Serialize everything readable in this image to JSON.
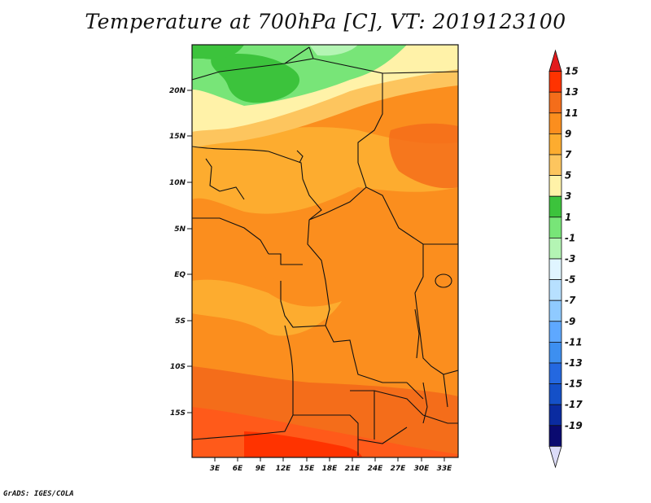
{
  "title": "Temperature at 700hPa [C], VT: 2019123100",
  "credit": "GrADS: IGES/COLA",
  "map": {
    "lat_labels": [
      "20N",
      "15N",
      "10N",
      "5N",
      "EQ",
      "5S",
      "10S",
      "15S"
    ],
    "lon_labels": [
      "3E",
      "6E",
      "9E",
      "12E",
      "15E",
      "18E",
      "21E",
      "24E",
      "27E",
      "30E",
      "33E"
    ]
  },
  "colorbar": {
    "labels": [
      "15",
      "13",
      "11",
      "9",
      "7",
      "5",
      "3",
      "1",
      "-1",
      "-3",
      "-5",
      "-7",
      "-9",
      "-11",
      "-13",
      "-15",
      "-17",
      "-19"
    ],
    "colors": [
      "#e31a1c",
      "#ff3300",
      "#f46d1a",
      "#fb8e1e",
      "#fdac2f",
      "#fdc55e",
      "#fff2a8",
      "#3cc33c",
      "#78e578",
      "#b4f5b4",
      "#e0f5ff",
      "#b7e0ff",
      "#8fcaff",
      "#5ea8ff",
      "#3d8ff0",
      "#2468e0",
      "#1450c8",
      "#0a2ba0",
      "#0a0a70",
      "#dcdcf8"
    ]
  }
}
